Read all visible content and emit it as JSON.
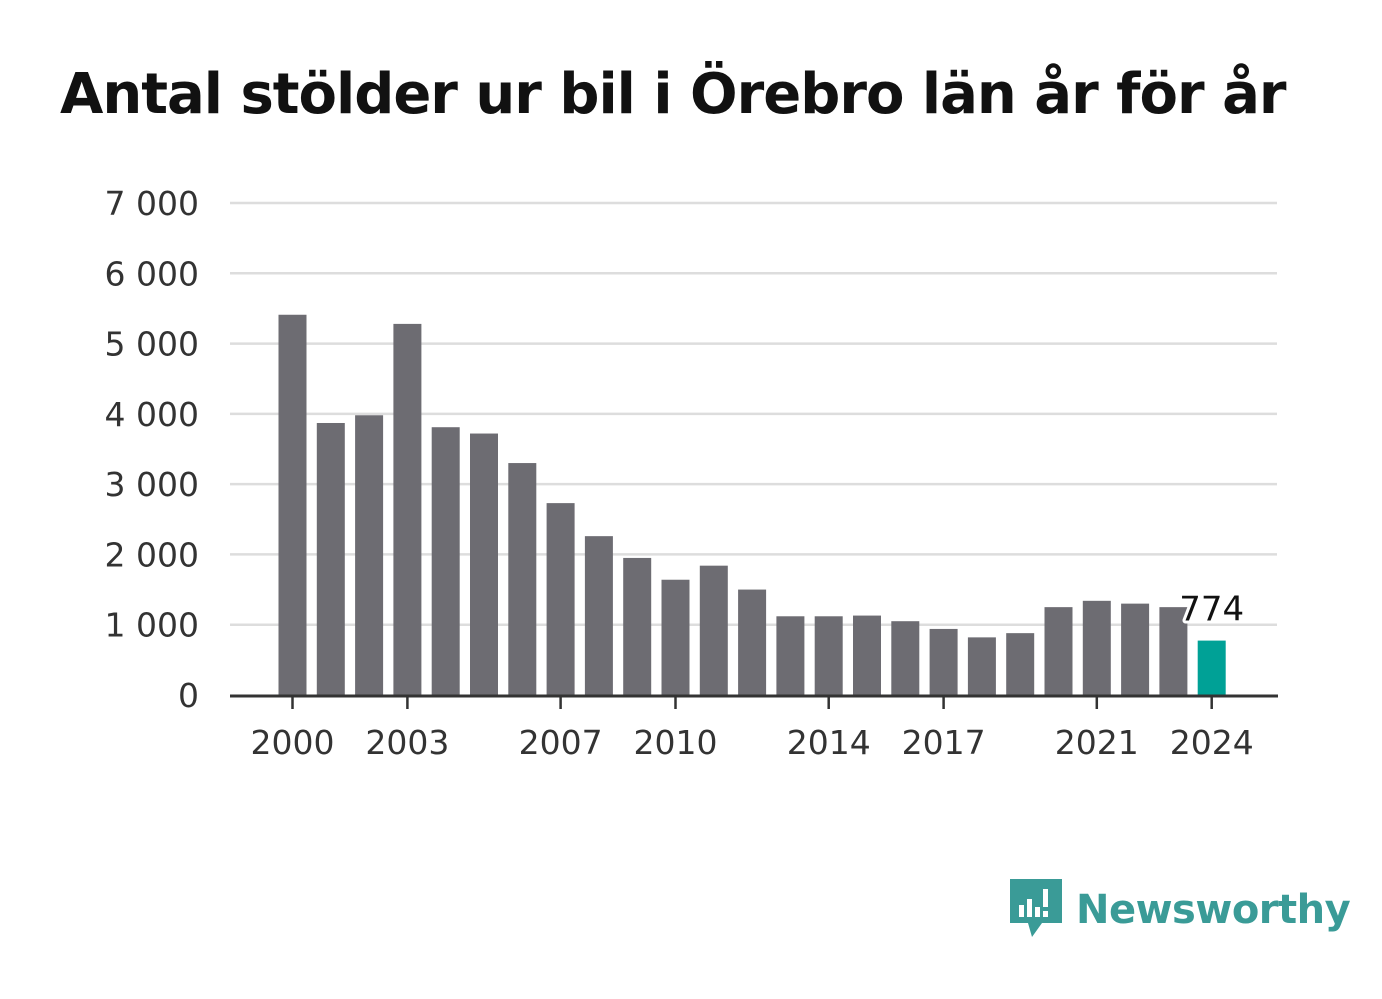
{
  "chart_data": {
    "type": "bar",
    "title": "Antal stölder ur bil i Örebro län år för år",
    "x": [
      2000,
      2001,
      2002,
      2003,
      2004,
      2005,
      2006,
      2007,
      2008,
      2009,
      2010,
      2011,
      2012,
      2013,
      2014,
      2015,
      2016,
      2017,
      2018,
      2019,
      2020,
      2021,
      2022,
      2023,
      2024
    ],
    "values": [
      5410,
      3870,
      3980,
      5280,
      3810,
      3720,
      3300,
      2730,
      2260,
      1950,
      1640,
      1840,
      1500,
      1120,
      1120,
      1130,
      1050,
      940,
      820,
      880,
      1250,
      1340,
      1300,
      1250,
      774
    ],
    "x_tick_labels": [
      "2000",
      "2003",
      "2007",
      "2010",
      "2014",
      "2017",
      "2021",
      "2024"
    ],
    "y_tick_labels": [
      "0",
      "1 000",
      "2 000",
      "3 000",
      "4 000",
      "5 000",
      "6 000",
      "7 000"
    ],
    "ylim": [
      0,
      7000
    ],
    "xlabel": "",
    "ylabel": "",
    "grid": true,
    "highlight": {
      "x": 2024,
      "label": "774",
      "color": "#00a196"
    },
    "bar_color": "#6d6c72",
    "grid_color": "#dddddd",
    "axis_color": "#333333"
  },
  "brand": {
    "name": "Newsworthy",
    "logo_icon": "newsworthy-bar-chart-speech-bubble-icon",
    "color": "#3a9b97"
  }
}
